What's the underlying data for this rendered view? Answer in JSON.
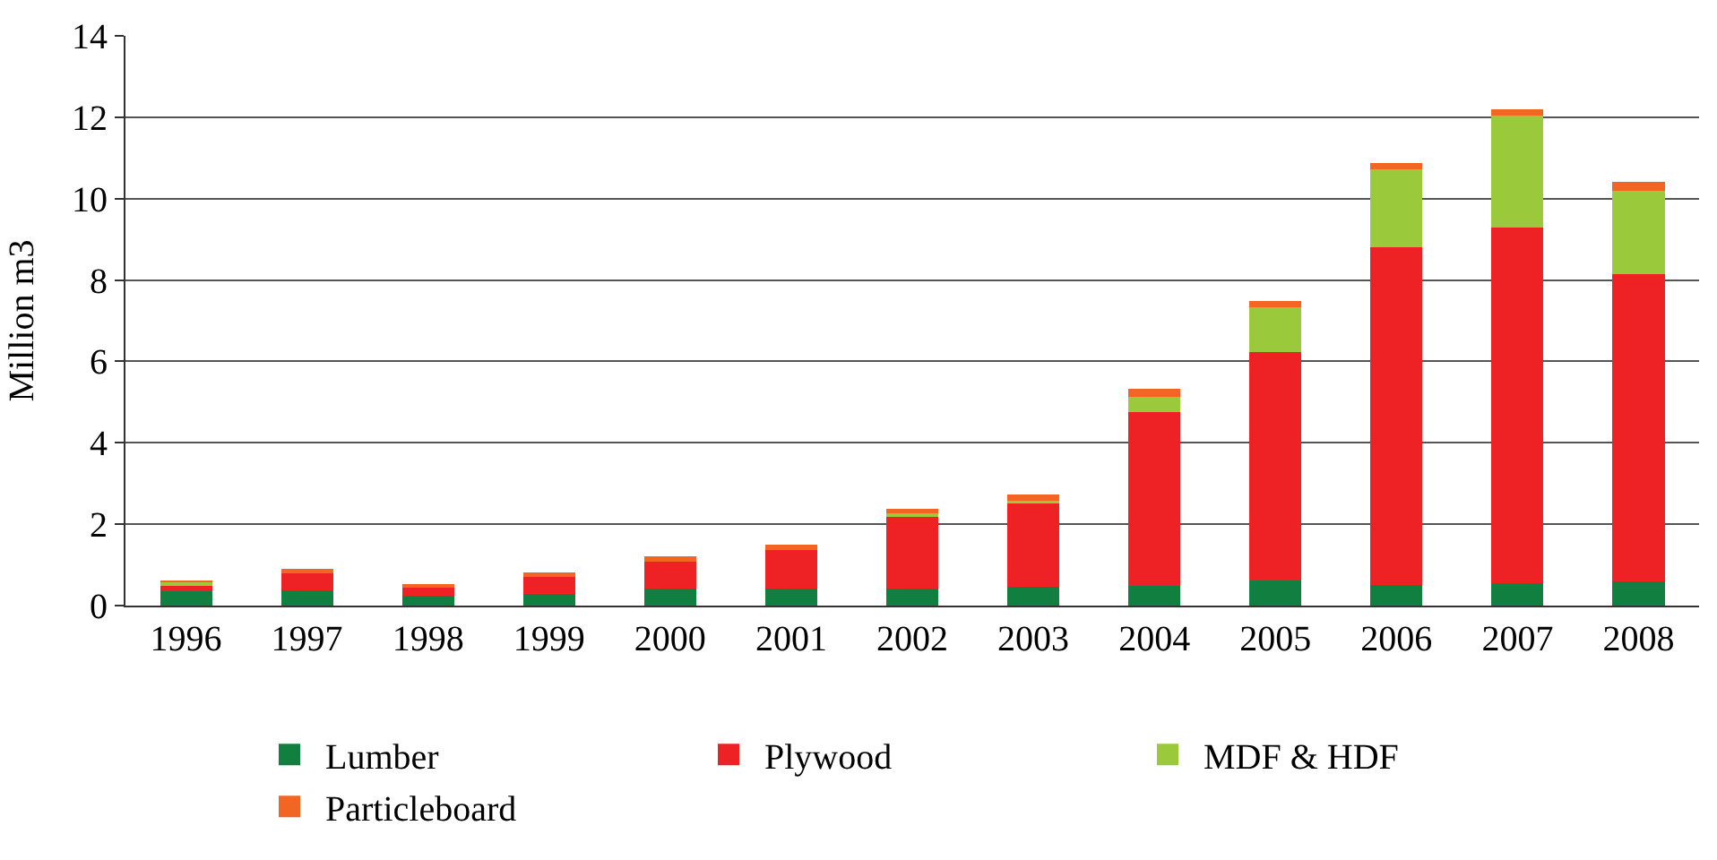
{
  "chart_data": {
    "type": "bar",
    "stacked": true,
    "ylabel": "Million m3",
    "categories": [
      "1996",
      "1997",
      "1998",
      "1999",
      "2000",
      "2001",
      "2002",
      "2003",
      "2004",
      "2005",
      "2006",
      "2007",
      "2008"
    ],
    "series": [
      {
        "name": "Lumber",
        "color": "#107f3f",
        "values": [
          0.35,
          0.37,
          0.24,
          0.29,
          0.42,
          0.41,
          0.41,
          0.47,
          0.48,
          0.62,
          0.51,
          0.56,
          0.6
        ]
      },
      {
        "name": "Plywood",
        "color": "#ee2224",
        "values": [
          0.13,
          0.43,
          0.19,
          0.42,
          0.66,
          0.95,
          1.76,
          2.05,
          4.27,
          5.61,
          8.29,
          8.72,
          7.54
        ]
      },
      {
        "name": "MDF & HDF",
        "color": "#9aca3c",
        "values": [
          0.1,
          0.0,
          0.0,
          null,
          null,
          0.0,
          0.1,
          0.06,
          0.38,
          1.1,
          1.93,
          2.77,
          2.06
        ]
      },
      {
        "name": "Particleboard",
        "color": "#f26522",
        "values": [
          0.02,
          0.1,
          0.09,
          0.1,
          0.12,
          0.14,
          0.11,
          0.14,
          0.19,
          0.15,
          0.14,
          0.15,
          0.21
        ]
      }
    ],
    "ylim": [
      0,
      14
    ],
    "yticks": [
      0,
      2,
      4,
      6,
      8,
      10,
      12,
      14
    ],
    "grid": "y",
    "legend": "bottom"
  }
}
